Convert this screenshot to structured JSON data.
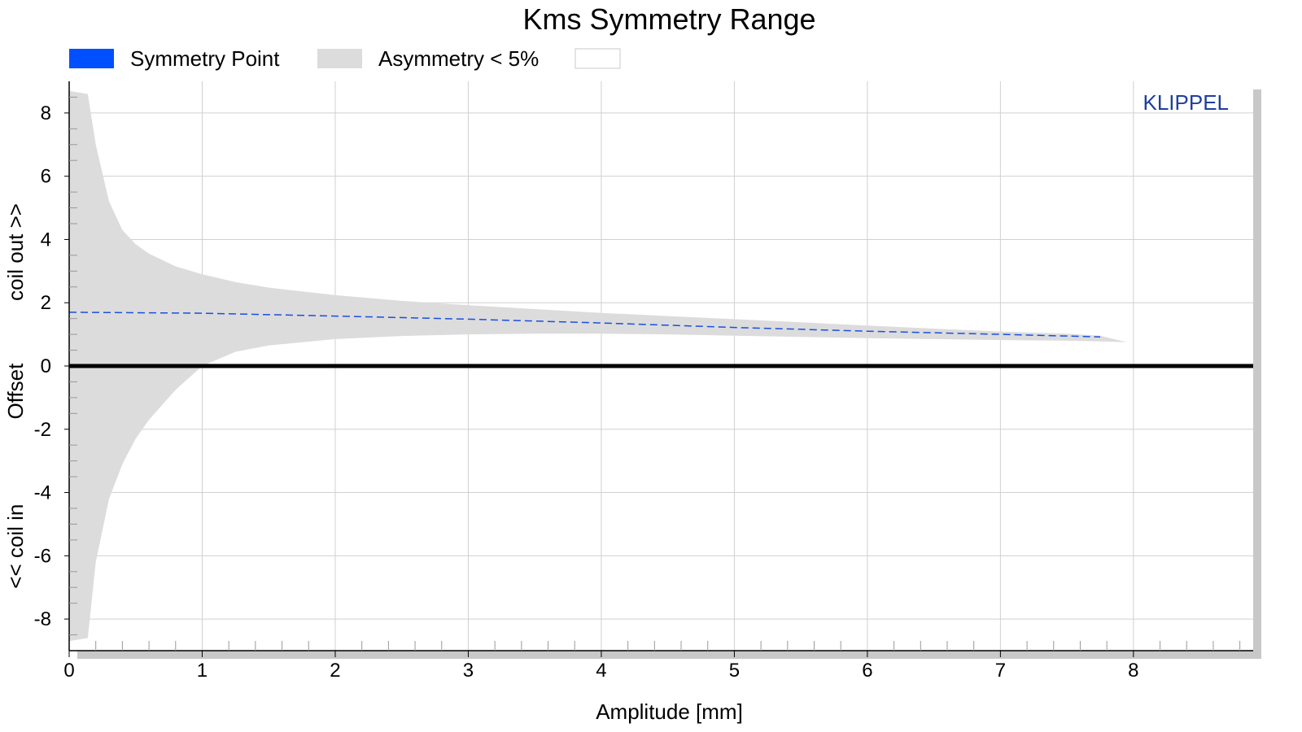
{
  "chart_data": {
    "type": "area",
    "title": "Kms Symmetry Range",
    "xlabel": "Amplitude [mm]",
    "ylabel_parts": [
      "<< coil in",
      "Offset",
      "coil out >>"
    ],
    "watermark": "KLIPPEL",
    "xlim": [
      0,
      8.9
    ],
    "ylim": [
      -9.0,
      9.0
    ],
    "x_ticks": [
      0,
      1,
      2,
      3,
      4,
      5,
      6,
      7,
      8
    ],
    "y_ticks": [
      -8,
      -6,
      -4,
      -2,
      0,
      2,
      4,
      6,
      8
    ],
    "grid": true,
    "legend_position": "top",
    "legend": [
      {
        "label": "Symmetry Point",
        "color": "#0050ff"
      },
      {
        "label": "Asymmetry < 5%",
        "color": "#dcdcdc"
      },
      {
        "label": "",
        "color": "#ffffff"
      }
    ],
    "series": [
      {
        "name": "Symmetry Point",
        "kind": "line",
        "style": "dashed",
        "color": "#1a4fe0",
        "x": [
          0,
          1,
          2,
          3,
          4,
          5,
          6,
          7,
          7.75
        ],
        "y": [
          1.7,
          1.67,
          1.58,
          1.48,
          1.36,
          1.22,
          1.1,
          1.0,
          0.92
        ]
      },
      {
        "name": "Asymmetry < 5%",
        "kind": "band",
        "color": "#dcdcdc",
        "x": [
          0,
          0.14,
          0.2,
          0.3,
          0.4,
          0.5,
          0.6,
          0.8,
          1.0,
          1.25,
          1.5,
          2.0,
          2.5,
          3.0,
          3.5,
          4.0,
          4.5,
          5.0,
          5.5,
          6.0,
          6.5,
          7.0,
          7.5,
          7.75,
          7.95
        ],
        "upper": [
          8.7,
          8.6,
          7.0,
          5.2,
          4.3,
          3.85,
          3.55,
          3.15,
          2.9,
          2.65,
          2.48,
          2.24,
          2.06,
          1.92,
          1.8,
          1.68,
          1.58,
          1.48,
          1.38,
          1.28,
          1.18,
          1.09,
          1.02,
          0.96,
          0.75
        ],
        "lower": [
          -8.7,
          -8.6,
          -6.2,
          -4.2,
          -3.1,
          -2.3,
          -1.7,
          -0.75,
          0.0,
          0.45,
          0.65,
          0.85,
          0.95,
          1.0,
          1.02,
          1.02,
          1.0,
          0.96,
          0.92,
          0.88,
          0.85,
          0.82,
          0.8,
          0.78,
          0.75
        ]
      }
    ]
  }
}
